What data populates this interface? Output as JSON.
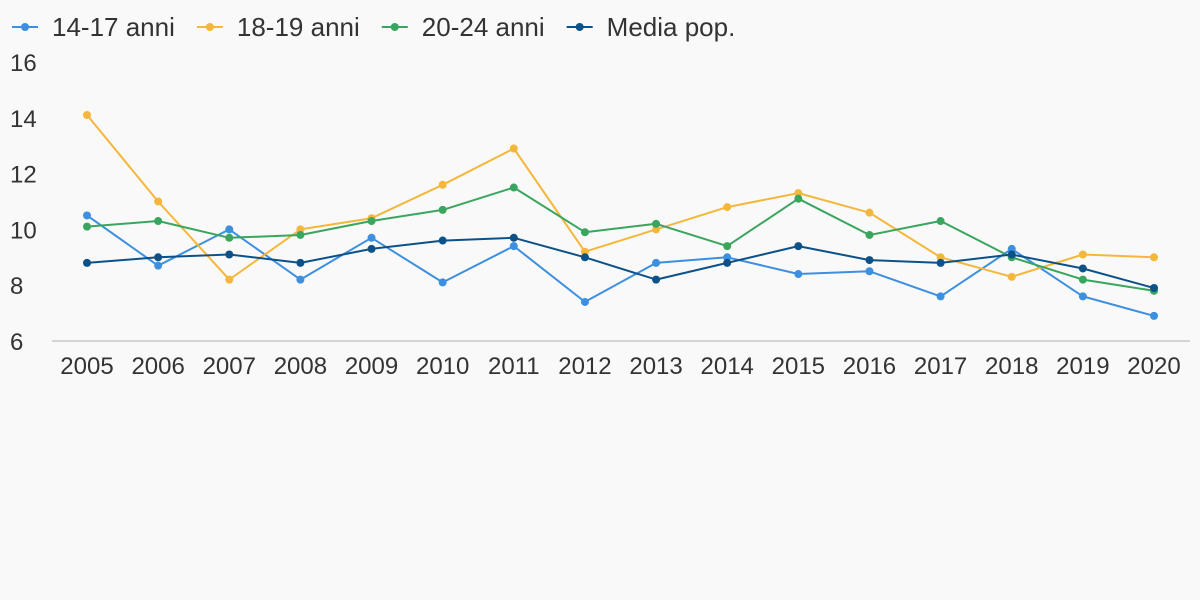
{
  "chart_data": {
    "type": "line",
    "title": "",
    "xlabel": "",
    "ylabel": "",
    "categories": [
      "2005",
      "2006",
      "2007",
      "2008",
      "2009",
      "2010",
      "2011",
      "2012",
      "2013",
      "2014",
      "2015",
      "2016",
      "2017",
      "2018",
      "2019",
      "2020"
    ],
    "ylim": [
      6,
      16
    ],
    "yticks": [
      6,
      8,
      10,
      12,
      14,
      16
    ],
    "grid": false,
    "legend": "top-left",
    "series": [
      {
        "name": "14-17 anni",
        "color": "#3d8fe0",
        "values": [
          10.5,
          8.7,
          10.0,
          8.2,
          9.7,
          8.1,
          9.4,
          7.4,
          8.8,
          9.0,
          8.4,
          8.5,
          7.6,
          9.3,
          7.6,
          6.9
        ]
      },
      {
        "name": "18-19 anni",
        "color": "#f5b73b",
        "values": [
          14.1,
          11.0,
          8.2,
          10.0,
          10.4,
          11.6,
          12.9,
          9.2,
          10.0,
          10.8,
          11.3,
          10.6,
          9.0,
          8.3,
          9.1,
          9.0
        ]
      },
      {
        "name": "20-24 anni",
        "color": "#3aa55e",
        "values": [
          10.1,
          10.3,
          9.7,
          9.8,
          10.3,
          10.7,
          11.5,
          9.9,
          10.2,
          9.4,
          11.1,
          9.8,
          10.3,
          9.0,
          8.2,
          7.8
        ]
      },
      {
        "name": "Media pop.",
        "color": "#0c5288",
        "values": [
          8.8,
          9.0,
          9.1,
          8.8,
          9.3,
          9.6,
          9.7,
          9.0,
          8.2,
          8.8,
          9.4,
          8.9,
          8.8,
          9.1,
          8.6,
          7.9
        ]
      }
    ]
  }
}
